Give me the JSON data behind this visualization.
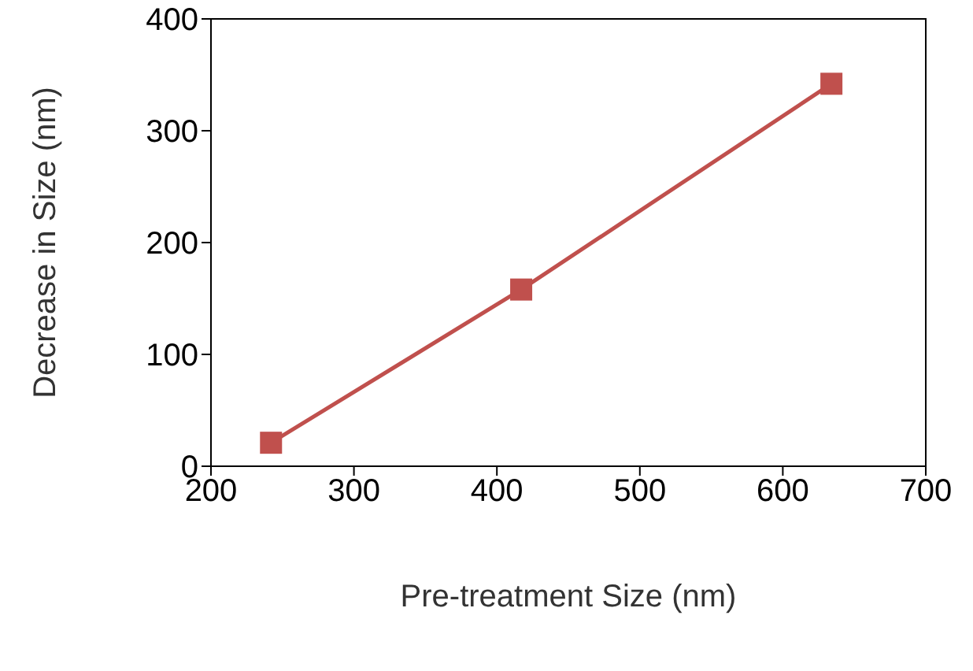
{
  "chart_data": {
    "type": "line",
    "xlabel": "Pre-treatment Size (nm)",
    "ylabel": "Decrease in Size (nm)",
    "x": [
      242,
      417,
      634
    ],
    "series": [
      {
        "color": "#c0504d",
        "values": [
          21,
          158,
          342
        ]
      }
    ],
    "xlim": [
      200,
      700
    ],
    "xticks": [
      200,
      300,
      400,
      500,
      600,
      700
    ],
    "ylim": [
      0,
      400
    ],
    "yticks": [
      0,
      100,
      200,
      300,
      400
    ],
    "grid": false,
    "legend": false,
    "marker": "square",
    "line_style": "solid"
  }
}
